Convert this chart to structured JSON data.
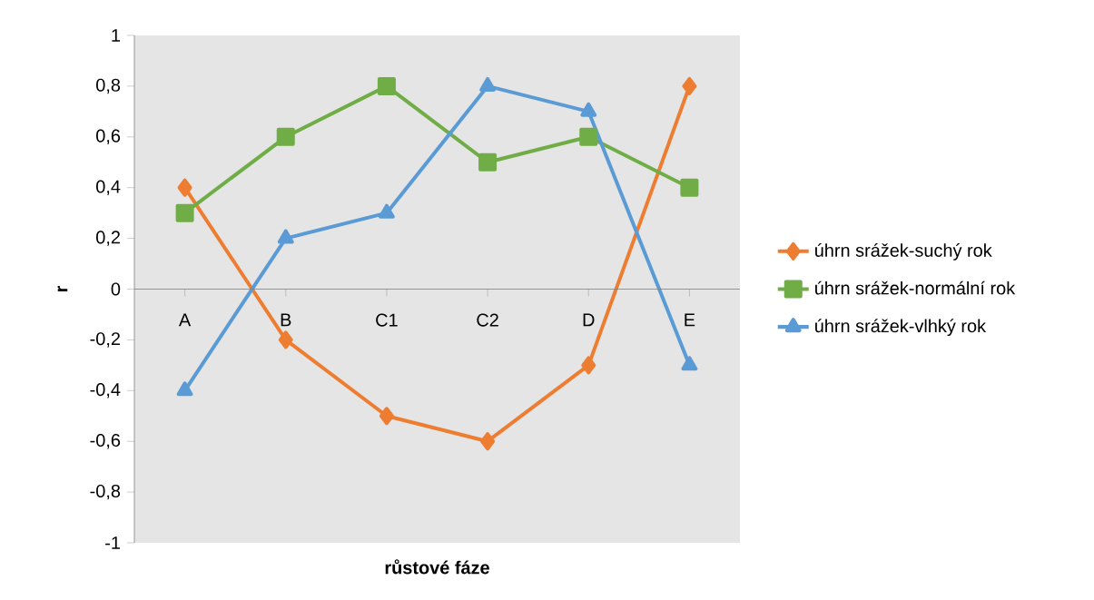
{
  "chart_data": {
    "type": "line",
    "xlabel": "růstové fáze",
    "ylabel": "r",
    "categories": [
      "A",
      "B",
      "C1",
      "C2",
      "D",
      "E"
    ],
    "series": [
      {
        "name": "úhrn srážek-suchý rok",
        "color": "#ed7d31",
        "marker": "diamond",
        "values": [
          0.4,
          -0.2,
          -0.5,
          -0.6,
          -0.3,
          0.8
        ]
      },
      {
        "name": "úhrn srážek-normální rok",
        "color": "#70ad47",
        "marker": "square",
        "values": [
          0.3,
          0.6,
          0.8,
          0.5,
          0.6,
          0.4
        ]
      },
      {
        "name": "úhrn srážek-vlhký rok",
        "color": "#5b9bd5",
        "marker": "triangle",
        "values": [
          -0.4,
          0.2,
          0.3,
          0.8,
          0.7,
          -0.3
        ]
      }
    ],
    "ylim": [
      -1,
      1
    ],
    "yticks": [
      -1,
      {
        "value": -0.8,
        "label": "-0,8"
      },
      {
        "value": -0.6,
        "label": "-0,6"
      },
      {
        "value": -0.4,
        "label": "-0,4"
      },
      {
        "value": -0.2,
        "label": "-0,2"
      },
      0,
      {
        "value": 0.2,
        "label": "0,2"
      },
      {
        "value": 0.4,
        "label": "0,4"
      },
      {
        "value": 0.6,
        "label": "0,6"
      },
      {
        "value": 0.8,
        "label": "0,8"
      },
      1
    ],
    "grid": false,
    "legend": "right",
    "line_style": "solid"
  }
}
